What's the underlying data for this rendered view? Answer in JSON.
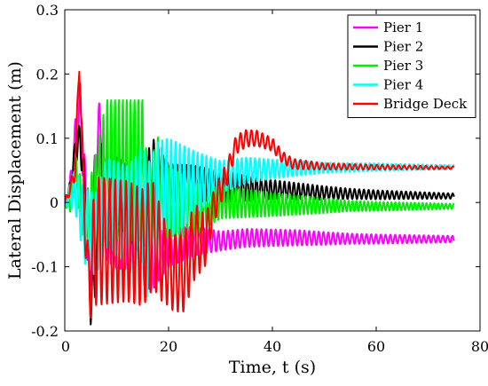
{
  "chart_data": {
    "type": "line",
    "xlabel": "Time, t (s)",
    "ylabel": "Lateral Displacement (m)",
    "xlim": [
      0,
      80
    ],
    "ylim": [
      -0.2,
      0.3
    ],
    "x_ticks": [
      "0",
      "20",
      "40",
      "60",
      "80"
    ],
    "y_ticks": [
      "-0.2",
      "-0.1",
      "0",
      "0.1",
      "0.2",
      "0.3"
    ],
    "x_tick_values": [
      0,
      20,
      40,
      60,
      80
    ],
    "y_tick_values": [
      -0.2,
      -0.1,
      0,
      0.1,
      0.2,
      0.3
    ],
    "grid": false,
    "legend_position": "top-right",
    "series": [
      {
        "name": "Pier 1",
        "color": "#ff00ff",
        "values": [
          [
            0,
            0
          ],
          [
            1,
            0.02
          ],
          [
            2,
            0.1
          ],
          [
            3,
            0.15
          ],
          [
            4,
            0.0
          ],
          [
            5,
            -0.12
          ],
          [
            6,
            0.08
          ],
          [
            7,
            0.13
          ],
          [
            8,
            -0.05
          ],
          [
            10,
            -0.06
          ],
          [
            12,
            -0.06
          ],
          [
            15,
            -0.08
          ],
          [
            17,
            -0.09
          ],
          [
            20,
            -0.07
          ],
          [
            25,
            -0.06
          ],
          [
            30,
            -0.06
          ],
          [
            35,
            -0.055
          ],
          [
            40,
            -0.055
          ],
          [
            45,
            -0.055
          ],
          [
            50,
            -0.056
          ],
          [
            60,
            -0.057
          ],
          [
            75,
            -0.057
          ]
        ],
        "amplitude": [
          [
            0,
            0.005
          ],
          [
            4,
            0.05
          ],
          [
            8,
            0.04
          ],
          [
            16,
            0.05
          ],
          [
            20,
            0.03
          ],
          [
            30,
            0.015
          ],
          [
            45,
            0.012
          ],
          [
            55,
            0.008
          ],
          [
            75,
            0.005
          ]
        ]
      },
      {
        "name": "Pier 2",
        "color": "#000000",
        "values": [
          [
            0,
            0
          ],
          [
            1,
            0.02
          ],
          [
            2,
            0.08
          ],
          [
            3,
            0.1
          ],
          [
            4,
            0.0
          ],
          [
            5,
            -0.15
          ],
          [
            6,
            -0.1
          ],
          [
            7,
            0.05
          ],
          [
            10,
            0.02
          ],
          [
            15,
            -0.02
          ],
          [
            17,
            0.04
          ],
          [
            20,
            0.03
          ],
          [
            25,
            0.03
          ],
          [
            30,
            0.025
          ],
          [
            40,
            0.02
          ],
          [
            50,
            0.015
          ],
          [
            60,
            0.012
          ],
          [
            75,
            0.01
          ]
        ],
        "amplitude": [
          [
            0,
            0.005
          ],
          [
            5,
            0.04
          ],
          [
            10,
            0.05
          ],
          [
            16,
            0.07
          ],
          [
            20,
            0.03
          ],
          [
            30,
            0.025
          ],
          [
            40,
            0.015
          ],
          [
            55,
            0.008
          ],
          [
            75,
            0.004
          ]
        ]
      },
      {
        "name": "Pier 3",
        "color": "#00ee00",
        "values": [
          [
            0,
            0
          ],
          [
            1,
            0.0
          ],
          [
            2,
            0.05
          ],
          [
            4,
            -0.04
          ],
          [
            6,
            0.0
          ],
          [
            8,
            0.05
          ],
          [
            11,
            0.05
          ],
          [
            14,
            0.05
          ],
          [
            15,
            0.05
          ],
          [
            16,
            -0.02
          ],
          [
            18,
            0.04
          ],
          [
            20,
            0.0
          ],
          [
            25,
            -0.01
          ],
          [
            30,
            0.0
          ],
          [
            40,
            -0.003
          ],
          [
            50,
            -0.005
          ],
          [
            60,
            -0.006
          ],
          [
            75,
            -0.006
          ]
        ],
        "amplitude": [
          [
            0,
            0.005
          ],
          [
            5,
            0.06
          ],
          [
            8,
            0.11
          ],
          [
            15,
            0.11
          ],
          [
            16,
            0.07
          ],
          [
            22,
            0.05
          ],
          [
            30,
            0.025
          ],
          [
            45,
            0.015
          ],
          [
            55,
            0.008
          ],
          [
            75,
            0.004
          ]
        ]
      },
      {
        "name": "Pier 4",
        "color": "#00ffff",
        "values": [
          [
            0,
            0
          ],
          [
            2,
            0.02
          ],
          [
            4,
            -0.04
          ],
          [
            6,
            -0.05
          ],
          [
            8,
            0.0
          ],
          [
            12,
            -0.02
          ],
          [
            15,
            0.0
          ],
          [
            16,
            -0.05
          ],
          [
            18,
            0.0
          ],
          [
            20,
            0.02
          ],
          [
            25,
            0.03
          ],
          [
            30,
            0.04
          ],
          [
            35,
            0.05
          ],
          [
            40,
            0.052
          ],
          [
            50,
            0.054
          ],
          [
            60,
            0.055
          ],
          [
            75,
            0.055
          ]
        ],
        "amplitude": [
          [
            0,
            0.005
          ],
          [
            4,
            0.06
          ],
          [
            8,
            0.07
          ],
          [
            14,
            0.08
          ],
          [
            16,
            0.11
          ],
          [
            20,
            0.08
          ],
          [
            25,
            0.05
          ],
          [
            30,
            0.025
          ],
          [
            40,
            0.015
          ],
          [
            50,
            0.008
          ],
          [
            75,
            0.003
          ]
        ]
      },
      {
        "name": "Bridge Deck",
        "color": "#ff0000",
        "values": [
          [
            0,
            0
          ],
          [
            1,
            0.02
          ],
          [
            2,
            0.05
          ],
          [
            2.8,
            0.22
          ],
          [
            3.5,
            0.05
          ],
          [
            4.5,
            -0.13
          ],
          [
            6,
            -0.06
          ],
          [
            8,
            -0.06
          ],
          [
            10,
            -0.06
          ],
          [
            12,
            -0.06
          ],
          [
            15,
            -0.07
          ],
          [
            17,
            -0.05
          ],
          [
            19,
            -0.09
          ],
          [
            21,
            -0.11
          ],
          [
            23,
            -0.11
          ],
          [
            25,
            -0.06
          ],
          [
            27,
            -0.06
          ],
          [
            29,
            0.0
          ],
          [
            31,
            0.04
          ],
          [
            33,
            0.09
          ],
          [
            35,
            0.1
          ],
          [
            37,
            0.1
          ],
          [
            40,
            0.09
          ],
          [
            42,
            0.07
          ],
          [
            44,
            0.06
          ],
          [
            47,
            0.058
          ],
          [
            50,
            0.056
          ],
          [
            60,
            0.055
          ],
          [
            75,
            0.054
          ]
        ],
        "amplitude": [
          [
            0,
            0.003
          ],
          [
            3,
            0.02
          ],
          [
            6,
            0.1
          ],
          [
            16,
            0.09
          ],
          [
            20,
            0.06
          ],
          [
            25,
            0.06
          ],
          [
            28,
            0.03
          ],
          [
            32,
            0.015
          ],
          [
            40,
            0.01
          ],
          [
            50,
            0.005
          ],
          [
            75,
            0.002
          ]
        ]
      }
    ]
  }
}
